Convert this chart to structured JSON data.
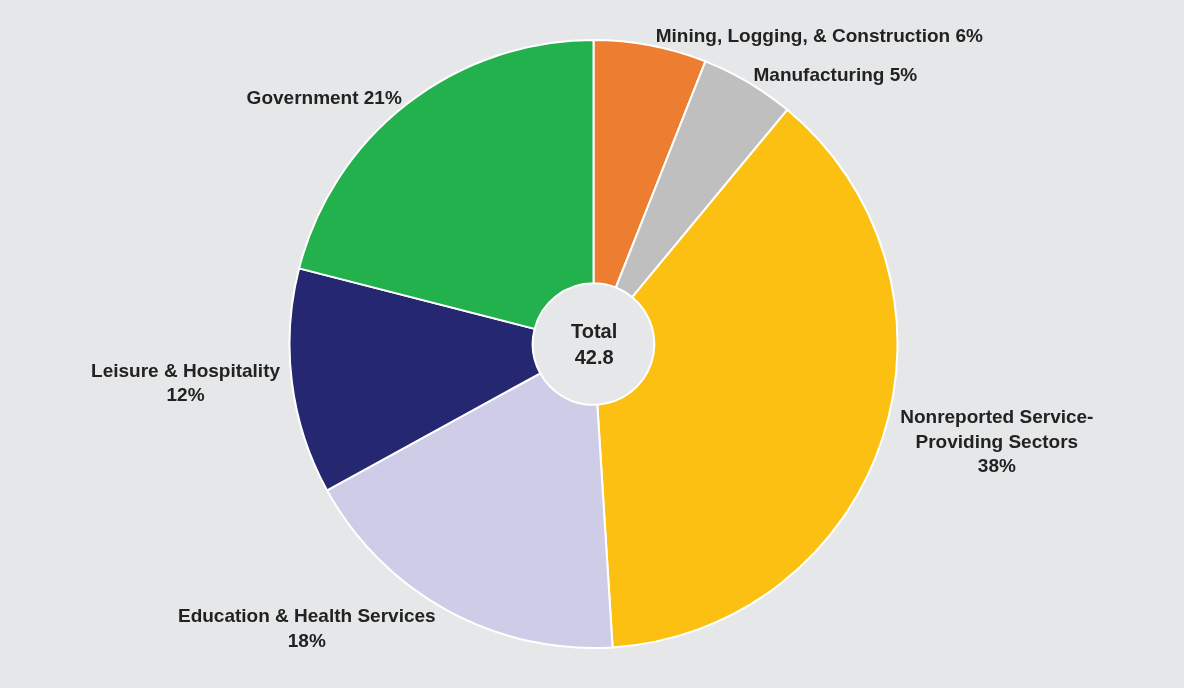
{
  "chart_data": {
    "type": "donut",
    "categories": [
      "Mining, Logging, & Construction",
      "Manufacturing",
      "Nonreported Service-\nProviding Sectors",
      "Education & Health Services",
      "Leisure & Hospitality",
      "Government"
    ],
    "values": [
      6,
      5,
      38,
      18,
      12,
      21
    ],
    "value_labels": [
      "6%",
      "5%",
      "\n38%",
      "\n18%",
      "\n12%",
      "21%"
    ],
    "colors": [
      "#ed7d31",
      "#bfbfbf",
      "#fbc012",
      "#cfcce8",
      "#252770",
      "#22b14c"
    ],
    "annotations": [
      "Total\n42.8"
    ],
    "legend": false
  }
}
